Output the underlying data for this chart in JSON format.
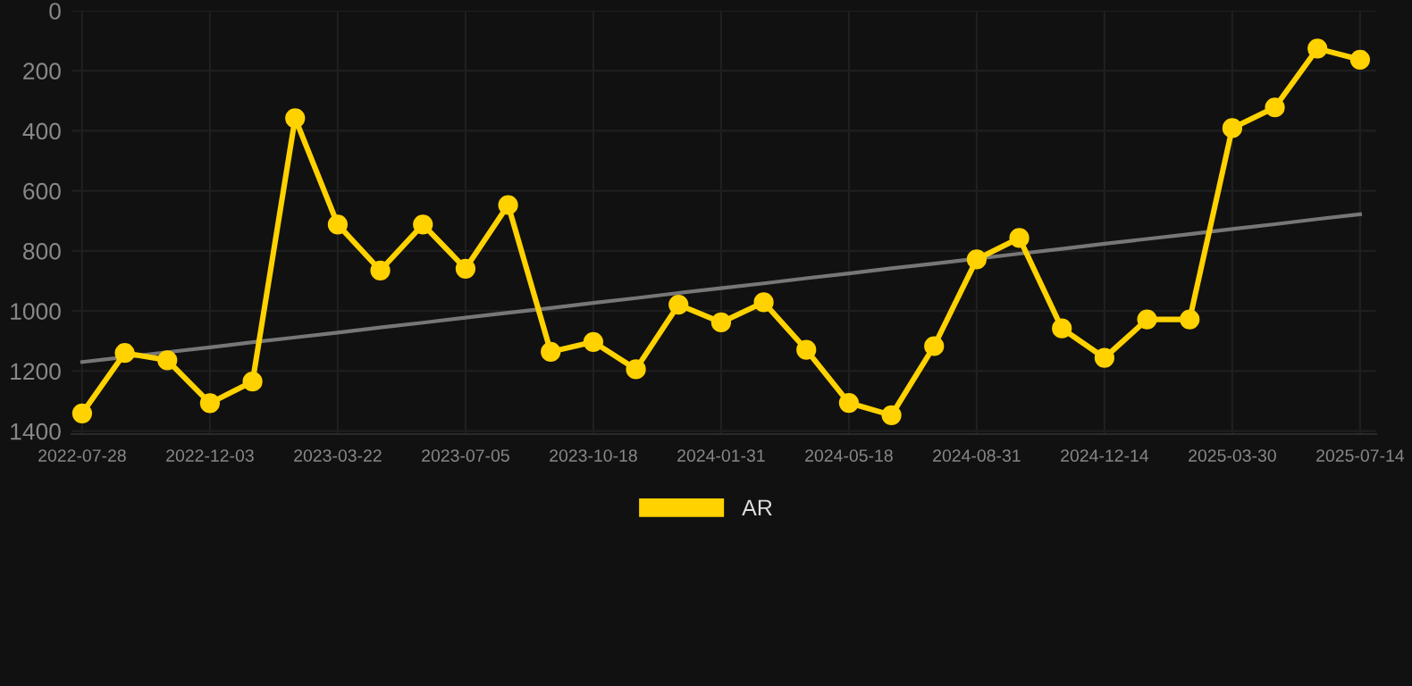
{
  "chart_data": {
    "type": "line",
    "categories": [
      "2022-07-28",
      null,
      null,
      "2022-12-03",
      null,
      null,
      "2023-03-22",
      null,
      null,
      "2023-07-05",
      null,
      null,
      "2023-10-18",
      null,
      null,
      "2024-01-31",
      null,
      null,
      "2024-05-18",
      null,
      null,
      "2024-08-31",
      null,
      null,
      "2024-12-14",
      null,
      null,
      "2025-03-30",
      null,
      null,
      "2025-07-14"
    ],
    "series": [
      {
        "name": "AR",
        "color": "#ffd200",
        "marker": "circle",
        "values": [
          1341,
          1140,
          1164,
          1307,
          1235,
          358,
          712,
          865,
          712,
          859,
          647,
          1136,
          1103,
          1194,
          979,
          1038,
          971,
          1129,
          1306,
          1347,
          1117,
          828,
          757,
          1058,
          1156,
          1028,
          1028,
          391,
          322,
          126,
          163
        ]
      },
      {
        "type": "line",
        "color": "#777777",
        "marker": "none",
        "values": [
          1170,
          1154,
          1137,
          1121,
          1104,
          1088,
          1072,
          1055,
          1039,
          1022,
          1006,
          990,
          973,
          957,
          940,
          924,
          908,
          891,
          875,
          858,
          842,
          826,
          809,
          793,
          776,
          760,
          744,
          727,
          711,
          694,
          678
        ]
      }
    ],
    "ylim": [
      1410,
      0
    ],
    "yticks": [
      0,
      200,
      400,
      600,
      800,
      1000,
      1200,
      1400
    ],
    "grid": true,
    "legend": "bottom",
    "line_style": "solid"
  }
}
